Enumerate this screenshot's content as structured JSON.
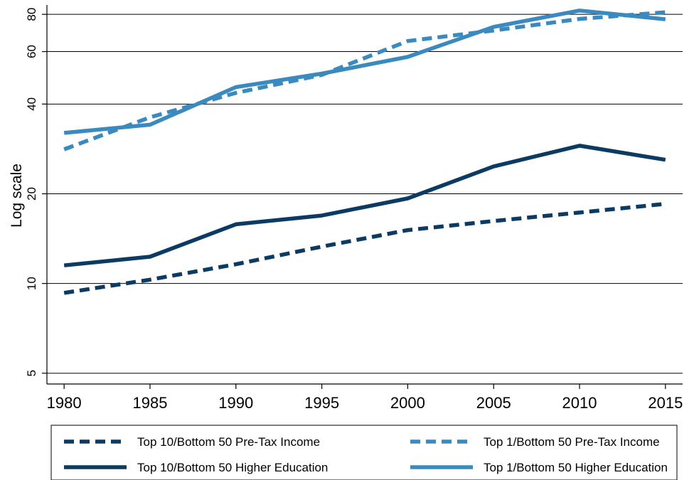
{
  "chart_data": {
    "type": "line",
    "title": "",
    "xlabel": "",
    "ylabel": "Log scale",
    "y_scale": "log",
    "xlim": [
      1980,
      2015
    ],
    "ylim": [
      4.6,
      86
    ],
    "x_ticks": [
      1980,
      1985,
      1990,
      1995,
      2000,
      2005,
      2010,
      2015
    ],
    "y_ticks": [
      5,
      10,
      20,
      40,
      60,
      80
    ],
    "grid": true,
    "legend_position": "bottom",
    "x": [
      1980,
      1985,
      1990,
      1995,
      2000,
      2005,
      2010,
      2015
    ],
    "series": [
      {
        "name": "Top 10/Bottom 50 Pre-Tax Income",
        "values": [
          9.3,
          10.3,
          11.6,
          13.3,
          15.1,
          16.2,
          17.3,
          18.5
        ],
        "color": "#0b3a63",
        "style": "dashed"
      },
      {
        "name": "Top 1/Bottom 50 Pre-Tax Income",
        "values": [
          28.2,
          36.1,
          43.6,
          50.1,
          65.1,
          70.6,
          77.2,
          81.3
        ],
        "color": "#3a8ac0",
        "style": "dashed"
      },
      {
        "name": "Top 10/Bottom 50 Higher Education",
        "values": [
          11.5,
          12.3,
          15.8,
          16.9,
          19.3,
          24.7,
          29.0,
          26.0
        ],
        "color": "#0b3a63",
        "style": "solid"
      },
      {
        "name": "Top 1/Bottom 50 Higher Education",
        "values": [
          32.0,
          34.1,
          45.6,
          50.6,
          57.6,
          72.6,
          82.4,
          77.0
        ],
        "color": "#3a8ac0",
        "style": "solid"
      }
    ]
  }
}
